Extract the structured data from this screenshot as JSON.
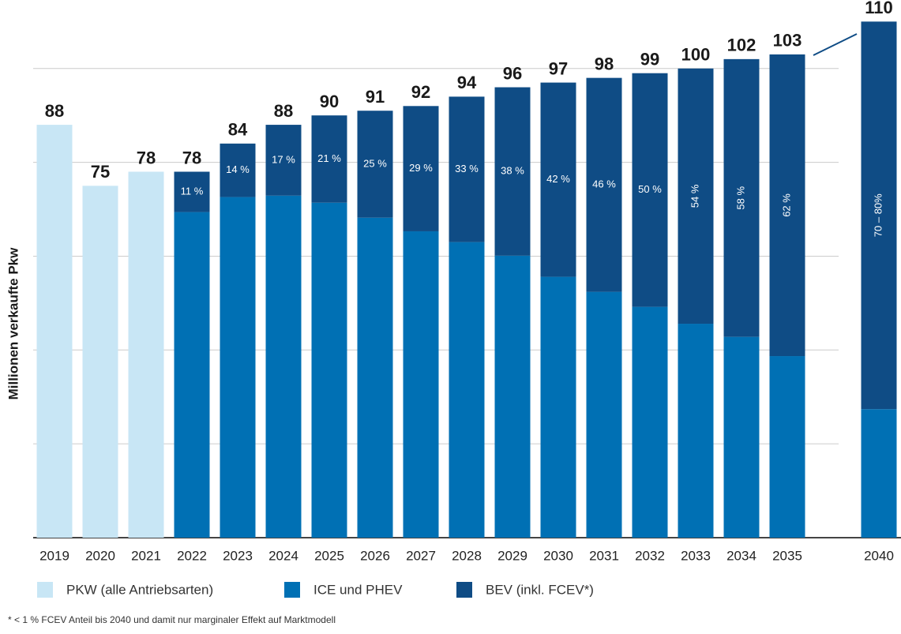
{
  "chart_data": {
    "type": "stacked-bar",
    "y_axis_label": "Millionen verkaufte Pkw",
    "categories": [
      "2019",
      "2020",
      "2021",
      "2022",
      "2023",
      "2024",
      "2025",
      "2026",
      "2027",
      "2028",
      "2029",
      "2030",
      "2031",
      "2032",
      "2033",
      "2034",
      "2035",
      null,
      "2040"
    ],
    "series": [
      {
        "name": "PKW (alle Antriebsarten)",
        "color": "#c8e6f5",
        "values": [
          88,
          75,
          78,
          null,
          null,
          null,
          null,
          null,
          null,
          null,
          null,
          null,
          null,
          null,
          null,
          null,
          null,
          null,
          null
        ]
      },
      {
        "name": "ICE und PHEV",
        "color": "#0070b4",
        "values": [
          null,
          null,
          null,
          69.4,
          72.6,
          72.9,
          71.4,
          68.2,
          65.3,
          63.0,
          60.1,
          55.6,
          52.4,
          49.2,
          45.6,
          42.8,
          38.7,
          null,
          27.4
        ]
      },
      {
        "name": "BEV (inkl. FCEV*)",
        "color": "#0f4c85",
        "values": [
          null,
          null,
          null,
          8.6,
          11.4,
          15.1,
          18.6,
          22.8,
          26.7,
          31.0,
          35.9,
          41.4,
          45.6,
          49.8,
          54.4,
          59.2,
          64.3,
          null,
          82.6
        ]
      }
    ],
    "totals": [
      88,
      75,
      78,
      78,
      84,
      88,
      90,
      91,
      92,
      94,
      96,
      97,
      98,
      99,
      100,
      102,
      103,
      null,
      110
    ],
    "share_labels": [
      null,
      null,
      null,
      "11 %",
      "14 %",
      "17 %",
      "21 %",
      "25 %",
      "29 %",
      "33 %",
      "38 %",
      "42 %",
      "46 %",
      "50 %",
      "54 %",
      "58 %",
      "62 %",
      null,
      "70 – 80%"
    ],
    "ylim": [
      0,
      114.6
    ],
    "yticks": [
      0,
      20,
      40,
      60,
      80,
      100
    ],
    "grid": true,
    "footnote": "* < 1 % FCEV Anteil bis 2040 und damit nur marginaler Effekt auf Marktmodell"
  }
}
